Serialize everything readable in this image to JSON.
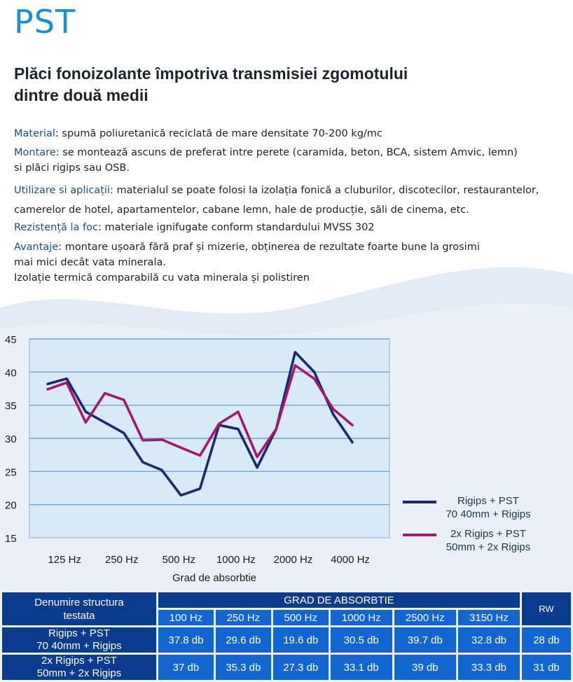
{
  "brand": "PST",
  "title_line1": "Plăci fonoizolante împotriva transmisiei zgomotului",
  "title_line2": "dintre două medii",
  "specs": {
    "material_label": "Material",
    "material_value": ": spumă poliuretanică reciclată de mare densitate 70-200 kg/mc",
    "montare_label": "Montare",
    "montare_value": ": se montează ascuns de preferat intre perete (caramida, beton, BCA, sistem Amvic, lemn)",
    "montare_value2": "si plăci rigips sau OSB.",
    "utilizare_label": "Utilizare si aplicații",
    "utilizare_value": ": materialul se poate folosi la izolația fonică a cluburilor, discotecilor, restaurantelor,",
    "utilizare_value2": "camerelor de hotel, apartamentelor, cabane lemn, hale de producție, săli de cinema, etc.",
    "foc_label": "Rezistență la foc",
    "foc_value": ": materiale ignifugate conform standardului MVSS 302",
    "avantaje_label": "Avantaje",
    "avantaje_value": ": montare ușoară fără praf și mizerie, obținerea de rezultate foarte bune la grosimi",
    "avantaje_value2": "mai mici decât vata minerala.",
    "avantaje_value3": "Izolație termică comparabilă cu vata minerala și polistiren"
  },
  "chart_data": {
    "type": "line",
    "xlabel": "Grad de absorbtie",
    "ylabel": "",
    "ylim": [
      15,
      45
    ],
    "yticks": [
      15,
      20,
      25,
      30,
      35,
      40,
      45
    ],
    "x_tick_labels": [
      "125 Hz",
      "250 Hz",
      "500 Hz",
      "1000 Hz",
      "2000 Hz",
      "4000 Hz"
    ],
    "x_tick_indices": [
      1,
      4,
      7,
      10,
      13,
      16
    ],
    "grid": "horizontal",
    "legend_position": "right",
    "series": [
      {
        "name_line1": "Rigips + PST",
        "name_line2": "70 40mm + Rigips",
        "color": "#1a2a6c",
        "values": [
          38.2,
          39.0,
          34.0,
          32.4,
          30.8,
          26.4,
          25.2,
          21.4,
          22.4,
          32.0,
          31.4,
          25.6,
          31.4,
          43.0,
          40.0,
          33.6,
          29.4
        ]
      },
      {
        "name_line1": "2x Rigips + PST",
        "name_line2": "50mm + 2x Rigips",
        "color": "#a3196f",
        "values": [
          37.4,
          38.4,
          32.4,
          36.8,
          35.8,
          29.7,
          29.8,
          28.6,
          27.4,
          32.2,
          34.0,
          27.2,
          31.4,
          41.0,
          39.0,
          34.4,
          32.0
        ]
      }
    ]
  },
  "table": {
    "header_col1_line1": "Denumire structura",
    "header_col1_line2": "testata",
    "header_group": "GRAD DE ABSORBTIE",
    "header_rw": "RW",
    "freqs": [
      "100 Hz",
      "250 Hz",
      "500 Hz",
      "1000 Hz",
      "2500 Hz",
      "3150 Hz"
    ],
    "rows": [
      {
        "name1": "Rigips + PST",
        "name2": "70 40mm + Rigips",
        "vals": [
          "37.8 db",
          "29.6 db",
          "19.6 db",
          "30.5 db",
          "39.7 db",
          "32.8 db"
        ],
        "rw": "28 db"
      },
      {
        "name1": "2x Rigips + PST",
        "name2": "50mm + 2x Rigips",
        "vals": [
          "37 db",
          "35.3 db",
          "27.3 db",
          "33.1 db",
          "39 db",
          "33.3 db"
        ],
        "rw": "31 db"
      }
    ]
  },
  "colors": {
    "brand": "#1a8fd8",
    "wave": "#dfe8f3",
    "plot_bg": "#d8e9f7",
    "grid": "#6f9fd4",
    "table_dark": "#0a3b8c",
    "table_mid": "#1466cf"
  }
}
